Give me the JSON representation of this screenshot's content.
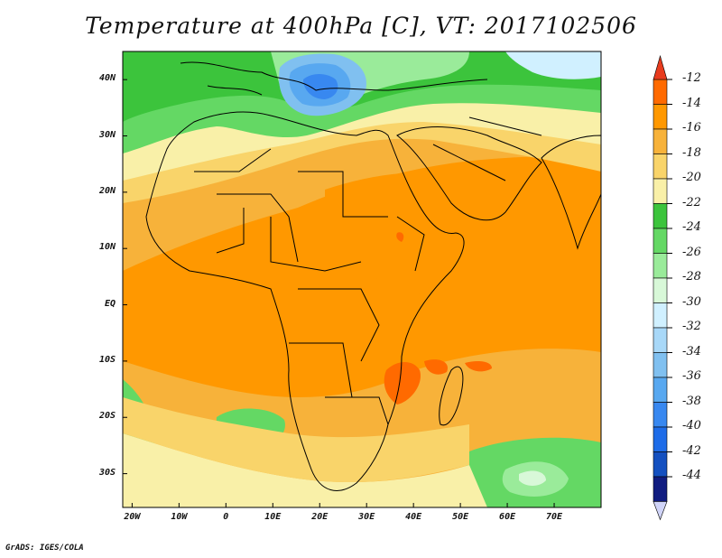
{
  "title": "Temperature at 400hPa [C], VT: 2017102506",
  "credit": "GrADS: IGES/COLA",
  "map": {
    "lon_range": [
      -22,
      80
    ],
    "lat_range": [
      -36,
      45
    ],
    "lat_ticks": [
      "40N",
      "30N",
      "20N",
      "10N",
      "EQ",
      "10S",
      "20S",
      "30S"
    ],
    "lat_values": [
      40,
      30,
      20,
      10,
      0,
      -10,
      -20,
      -30
    ],
    "lon_ticks": [
      "20W",
      "10W",
      "0",
      "10E",
      "20E",
      "30E",
      "40E",
      "50E",
      "60E",
      "70E"
    ],
    "lon_values": [
      -20,
      -10,
      0,
      10,
      20,
      30,
      40,
      50,
      60,
      70
    ]
  },
  "colorbar": {
    "labels": [
      "-12",
      "-14",
      "-16",
      "-18",
      "-20",
      "-22",
      "-24",
      "-26",
      "-28",
      "-30",
      "-32",
      "-34",
      "-36",
      "-38",
      "-40",
      "-42",
      "-44"
    ],
    "colors": [
      "#ff6a00",
      "#ff9800",
      "#f7b23a",
      "#f9d46a",
      "#f9f0a8",
      "#3cc43c",
      "#64d864",
      "#9aeb9a",
      "#d8f8d8",
      "#d0f0ff",
      "#a8d8f8",
      "#80c0f0",
      "#58a8f0",
      "#3888f0",
      "#1e6ce8",
      "#1450c0",
      "#101c80"
    ],
    "top_arrow_color": "#e83c1e",
    "bottom_arrow_color": "#d0d4f8"
  }
}
